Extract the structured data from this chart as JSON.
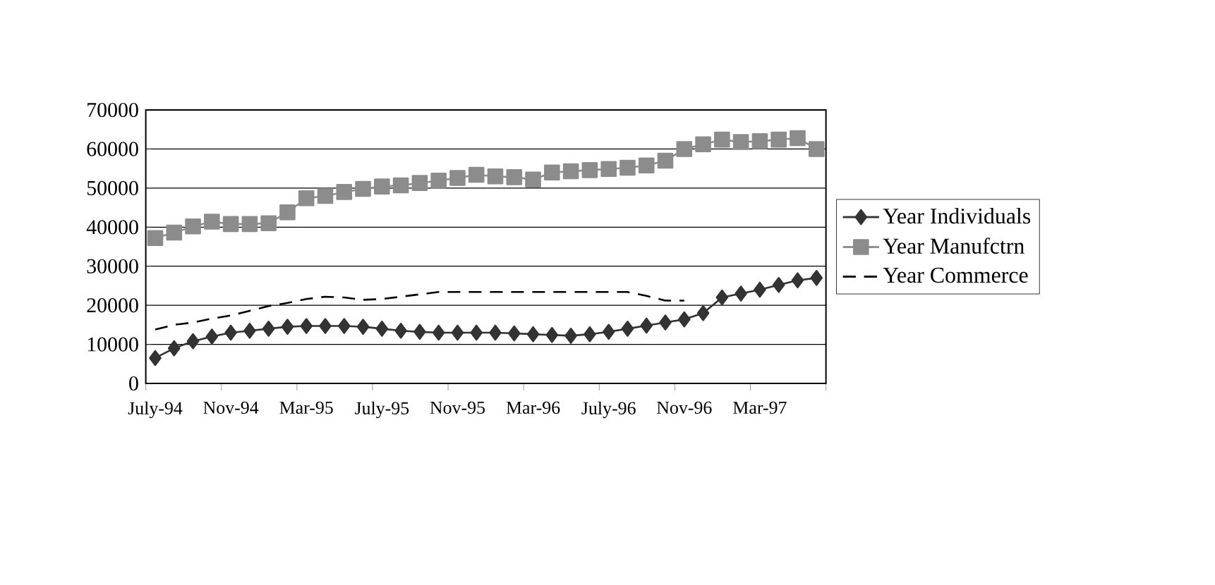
{
  "chart_data": {
    "type": "line",
    "categories": [
      "July-94",
      null,
      null,
      null,
      "Nov-94",
      null,
      null,
      null,
      "Mar-95",
      null,
      null,
      null,
      "July-95",
      null,
      null,
      null,
      "Nov-95",
      null,
      null,
      null,
      "Mar-96",
      null,
      null,
      null,
      "July-96",
      null,
      null,
      null,
      "Nov-96",
      null,
      null,
      null,
      "Mar-97",
      null,
      null,
      null
    ],
    "series": [
      {
        "name": "Year Individuals",
        "color": "#333333",
        "marker": "diamond",
        "line_style": "solid",
        "values": [
          6500,
          9000,
          10800,
          12000,
          13000,
          13500,
          14000,
          14500,
          14700,
          14700,
          14700,
          14500,
          14000,
          13500,
          13200,
          13000,
          13000,
          13000,
          13000,
          12800,
          12600,
          12400,
          12200,
          12600,
          13200,
          14000,
          14800,
          15600,
          16400,
          18000,
          22000,
          23000,
          24000,
          25200,
          26400,
          27000
        ]
      },
      {
        "name": "Year Manufctrn",
        "color": "#8c8c8c",
        "marker": "square",
        "line_style": "solid",
        "values": [
          37200,
          38600,
          40200,
          41400,
          40800,
          40800,
          41000,
          43800,
          47400,
          48000,
          49000,
          49800,
          50400,
          50700,
          51300,
          51900,
          52600,
          53400,
          53000,
          52800,
          52200,
          54000,
          54300,
          54600,
          54900,
          55200,
          55800,
          57000,
          60000,
          61200,
          62400,
          61800,
          62000,
          62400,
          62800,
          60000
        ]
      },
      {
        "name": "Year Commerce",
        "color": "#000000",
        "marker": "none",
        "line_style": "dashed",
        "values": [
          13800,
          15000,
          15600,
          16600,
          17400,
          18600,
          19800,
          20600,
          21600,
          22200,
          22000,
          21400,
          21600,
          22200,
          22800,
          23400,
          23400,
          23400,
          23400,
          23400,
          23400,
          23400,
          23400,
          23400,
          23400,
          23400,
          22400,
          21200,
          21200,
          null,
          null,
          null,
          null,
          null,
          null,
          null
        ]
      }
    ],
    "ylim": [
      0,
      70000
    ],
    "yticks": [
      0,
      10000,
      20000,
      30000,
      40000,
      50000,
      60000,
      70000
    ],
    "grid": "y",
    "legend": "right"
  }
}
